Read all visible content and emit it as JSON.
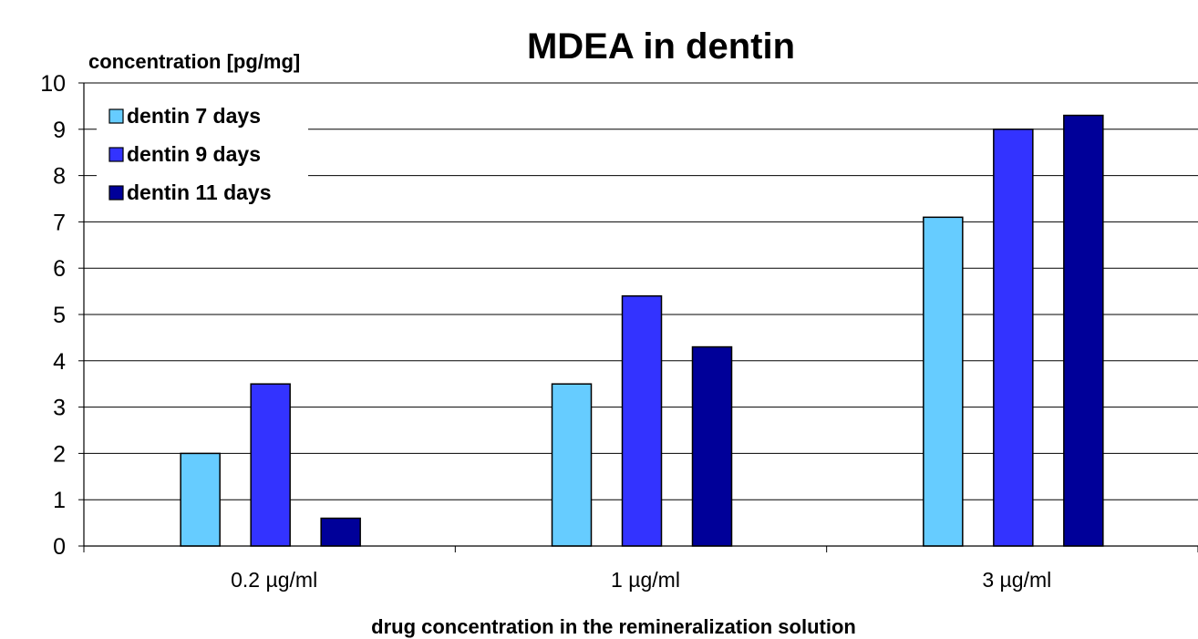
{
  "chart_data": {
    "type": "bar",
    "title": "MDEA in dentin",
    "ylabel": "concentration [pg/mg]",
    "xlabel": "drug concentration in the remineralization solution",
    "categories": [
      "0.2 µg/ml",
      "1 µg/ml",
      "3 µg/ml"
    ],
    "ylim": [
      0,
      10
    ],
    "yticks": [
      0,
      1,
      2,
      3,
      4,
      5,
      6,
      7,
      8,
      9,
      10
    ],
    "grid": true,
    "legend_position": "top-left",
    "series": [
      {
        "name": "dentin 7 days",
        "color": "#66ccff",
        "values": [
          2.0,
          3.5,
          7.1
        ]
      },
      {
        "name": "dentin 9 days",
        "color": "#3333ff",
        "values": [
          3.5,
          5.4,
          9.0
        ]
      },
      {
        "name": "dentin 11 days",
        "color": "#000099",
        "values": [
          0.6,
          4.3,
          9.3
        ]
      }
    ]
  }
}
